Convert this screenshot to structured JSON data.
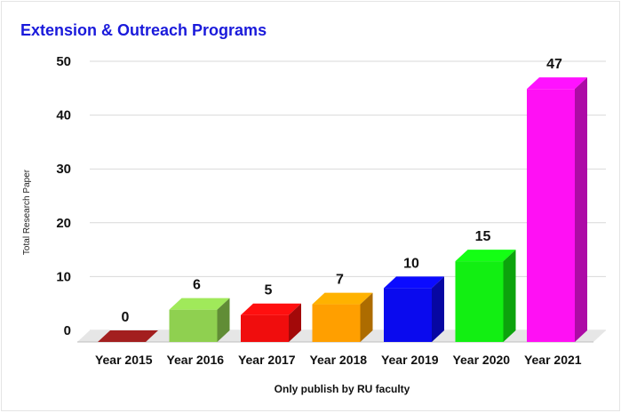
{
  "chart_data": {
    "type": "bar",
    "title": "Extension & Outreach Programs",
    "xlabel": "Only publish by RU faculty",
    "ylabel": "Total Research Paper",
    "categories": [
      "Year 2015",
      "Year 2016",
      "Year 2017",
      "Year 2018",
      "Year 2019",
      "Year 2020",
      "Year 2021"
    ],
    "values": [
      0,
      6,
      5,
      7,
      10,
      15,
      47
    ],
    "colors": [
      "#a31f1f",
      "#8fd050",
      "#f00d0d",
      "#ff9f00",
      "#0a0aee",
      "#12ef12",
      "#ff10f4"
    ],
    "yticks": [
      0,
      10,
      20,
      30,
      40,
      50
    ],
    "ylim": [
      0,
      50
    ],
    "grid": true,
    "style": "3d-bar"
  }
}
